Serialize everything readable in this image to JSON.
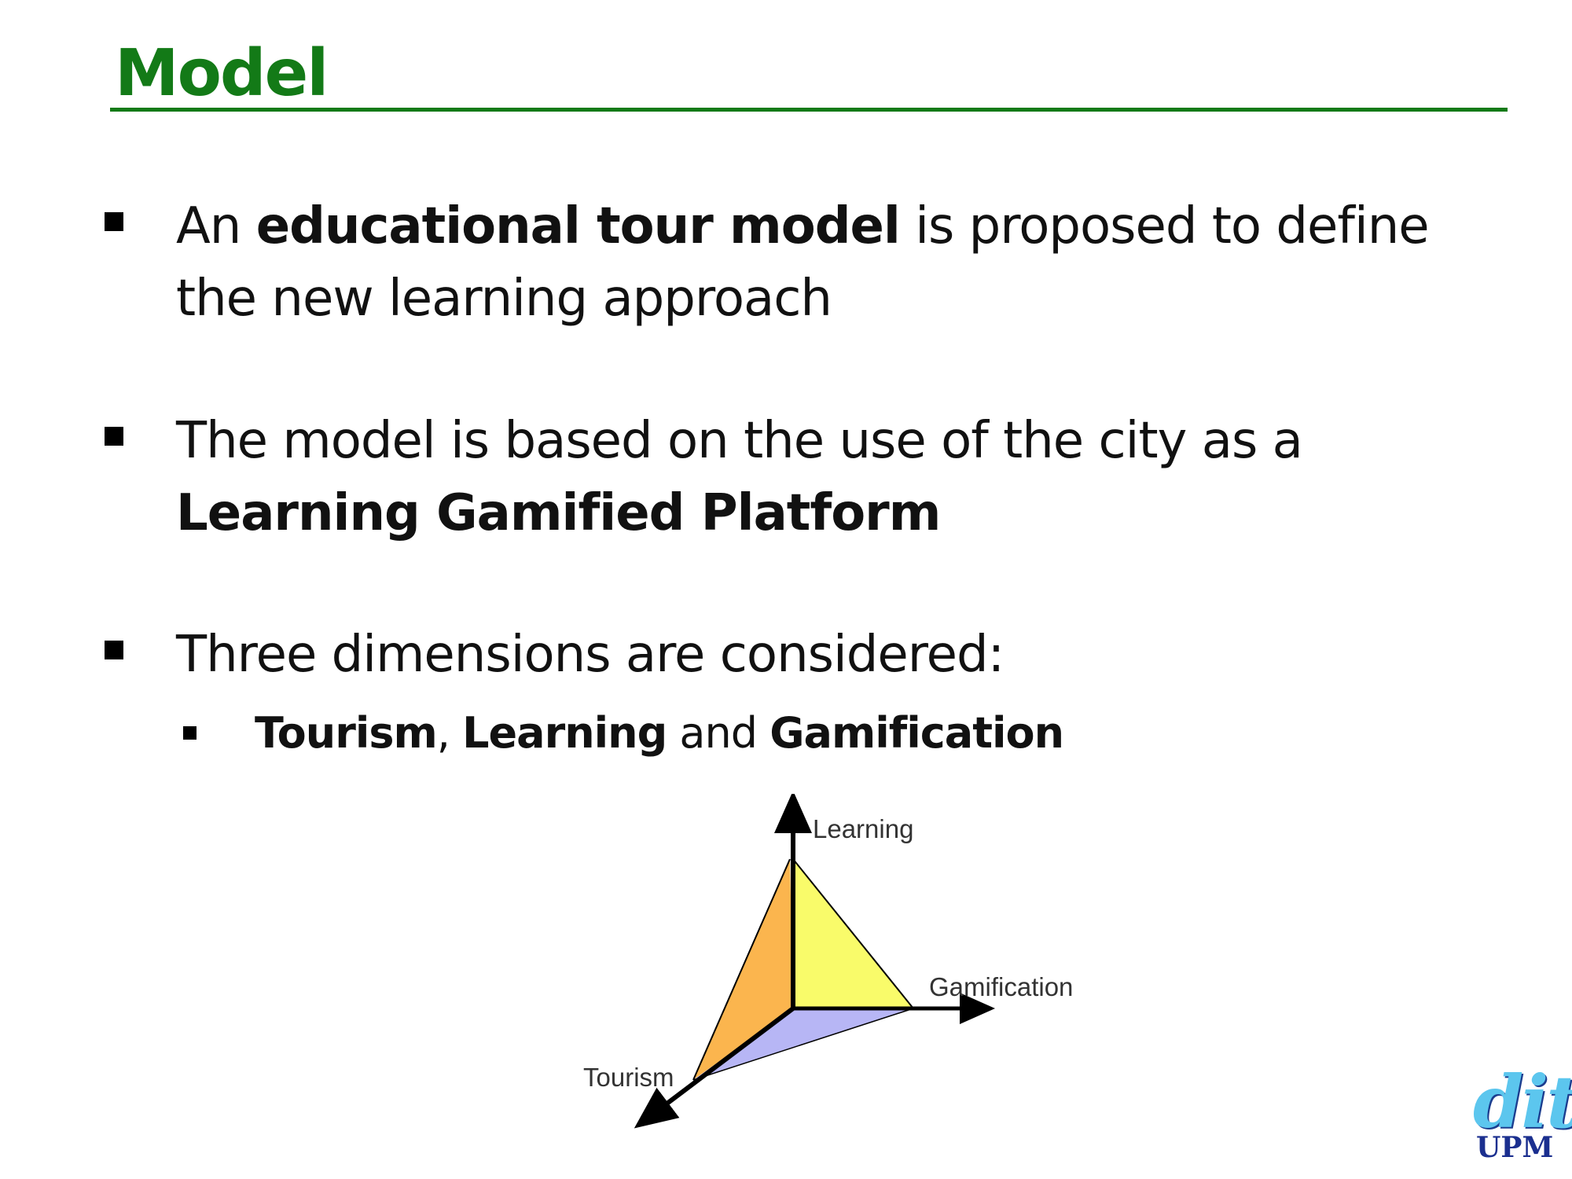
{
  "slide": {
    "title": "Model",
    "bullets": [
      {
        "pre": "An ",
        "bold": "educational tour model",
        "post": " is proposed to define",
        "line2": "the new learning approach"
      },
      {
        "line1": "The model is based on the use of the city as a",
        "line2_bold": "Learning Gamified Platform"
      },
      {
        "line1": "Three dimensions are considered:"
      }
    ],
    "sub_bullet": {
      "bold1": "Tourism",
      "sep1": ", ",
      "bold2": "Learning",
      "sep2": " and ",
      "bold3": "Gamification"
    }
  },
  "diagram": {
    "axis_labels": {
      "learning": "Learning",
      "gamification": "Gamification",
      "tourism": "Tourism"
    },
    "colors": {
      "face_left": "#fbb54e",
      "face_right": "#f9fb6a",
      "face_bottom": "#b7b6f5",
      "stroke": "#000000"
    }
  },
  "logo": {
    "dit": "dit",
    "upm": "UPM"
  },
  "colors": {
    "title": "#137a17",
    "text": "#111111"
  }
}
